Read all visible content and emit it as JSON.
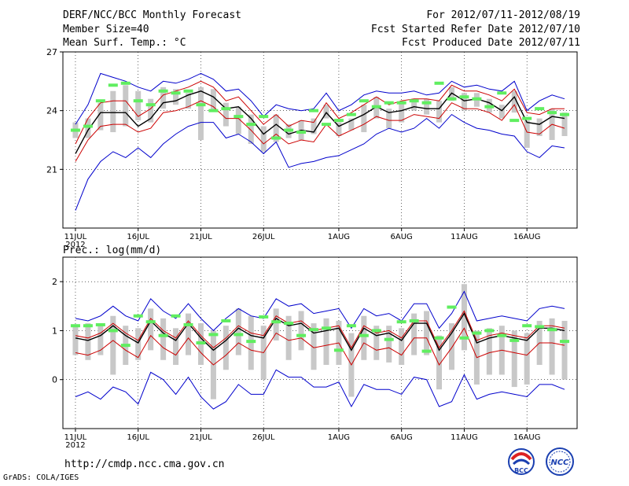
{
  "header": {
    "title": "DERF/NCC/BCC Monthly Forecast",
    "member_size": "Member Size=40",
    "variable": "Mean Surf. Temp.: °C",
    "period": "For 2012/07/11-2012/08/19",
    "start_date": "Fcst Started Refer Date 2012/07/10",
    "produced_date": "Fcst Produced Date 2012/07/11"
  },
  "footer": {
    "url": "http://cmdp.ncc.cma.gov.cn",
    "credit": "GrADS: COLA/IGES",
    "logo_bcc_text": "BCC",
    "logo_ncc_text": "NCC"
  },
  "colors": {
    "box": "#c8c8c8",
    "median": "#60ee60",
    "mean": "#000000",
    "extreme": "#0000cc",
    "std_band": "#cc0000",
    "outer_ring": "#1a3fb0"
  },
  "chart_data": [
    {
      "type": "box-line",
      "title": "Mean Surf. Temp.: °C",
      "ylabel": "°C",
      "ylim": [
        18,
        27
      ],
      "yticks": [
        21,
        24,
        27
      ],
      "x_labels": [
        {
          "day": 0,
          "label": "11JUL",
          "sublabel": "2012"
        },
        {
          "day": 5,
          "label": "16JUL"
        },
        {
          "day": 10,
          "label": "21JUL"
        },
        {
          "day": 15,
          "label": "26JUL"
        },
        {
          "day": 21,
          "label": "1AUG"
        },
        {
          "day": 26,
          "label": "6AUG"
        },
        {
          "day": 31,
          "label": "11AUG"
        },
        {
          "day": 36,
          "label": "16AUG"
        }
      ],
      "days": 40,
      "mean": [
        21.8,
        23.0,
        23.9,
        23.9,
        23.9,
        23.2,
        23.6,
        24.4,
        24.5,
        24.8,
        25.0,
        24.7,
        24.1,
        24.2,
        23.6,
        22.8,
        23.3,
        22.8,
        23.0,
        22.9,
        23.9,
        23.2,
        23.5,
        23.8,
        24.2,
        23.9,
        24.0,
        24.2,
        24.1,
        24.1,
        24.9,
        24.5,
        24.6,
        24.4,
        24.0,
        24.7,
        23.4,
        23.3,
        23.7,
        23.6,
        23.4,
        23.9
      ],
      "mean_plus_sd": [
        22.3,
        23.6,
        24.4,
        24.5,
        24.5,
        23.7,
        24.1,
        24.8,
        25.0,
        25.2,
        25.5,
        25.2,
        24.5,
        24.7,
        24.0,
        23.3,
        23.8,
        23.2,
        23.5,
        23.4,
        24.4,
        23.6,
        23.9,
        24.3,
        24.7,
        24.3,
        24.5,
        24.6,
        24.6,
        24.5,
        25.3,
        25.0,
        25.0,
        24.8,
        24.5,
        25.1,
        23.9,
        23.8,
        24.1,
        24.1,
        23.9,
        24.3
      ],
      "mean_minus_sd": [
        21.4,
        22.5,
        23.2,
        23.3,
        23.3,
        22.9,
        23.1,
        23.9,
        24.0,
        24.2,
        24.5,
        24.2,
        23.6,
        23.6,
        23.0,
        22.3,
        22.8,
        22.3,
        22.5,
        22.4,
        23.3,
        22.7,
        23.0,
        23.3,
        23.7,
        23.5,
        23.5,
        23.8,
        23.7,
        23.6,
        24.4,
        24.1,
        24.1,
        23.9,
        23.5,
        24.3,
        22.9,
        22.8,
        23.3,
        23.1,
        22.9,
        23.5
      ],
      "max": [
        23.3,
        24.3,
        25.9,
        25.7,
        25.5,
        25.2,
        25.0,
        25.5,
        25.4,
        25.6,
        25.9,
        25.6,
        25.0,
        25.1,
        24.5,
        23.7,
        24.3,
        24.1,
        24.0,
        24.1,
        24.9,
        24.0,
        24.3,
        24.8,
        25.0,
        24.9,
        24.9,
        25.0,
        24.8,
        24.9,
        25.5,
        25.2,
        25.3,
        25.1,
        25.0,
        25.5,
        24.0,
        24.5,
        24.8,
        24.6,
        24.5,
        24.7
      ],
      "min": [
        18.9,
        20.5,
        21.4,
        21.9,
        21.6,
        22.1,
        21.6,
        22.3,
        22.8,
        23.2,
        23.4,
        23.4,
        22.6,
        22.8,
        22.4,
        21.8,
        22.4,
        21.1,
        21.3,
        21.4,
        21.6,
        21.7,
        22.0,
        22.3,
        22.8,
        23.1,
        22.9,
        23.1,
        23.6,
        23.1,
        23.8,
        23.4,
        23.1,
        23.0,
        22.8,
        22.7,
        21.9,
        21.6,
        22.2,
        22.1,
        21.9,
        22.4
      ],
      "box_upper": [
        23.4,
        23.6,
        24.4,
        25.0,
        25.3,
        25.0,
        24.6,
        25.2,
        25.1,
        24.9,
        25.2,
        25.1,
        24.4,
        24.2,
        23.8,
        23.2,
        23.8,
        23.3,
        23.5,
        23.6,
        24.3,
        23.4,
        23.6,
        24.3,
        24.7,
        24.1,
        24.4,
        24.6,
        24.6,
        24.5,
        25.2,
        24.9,
        24.9,
        24.6,
        24.3,
        25.0,
        23.5,
        23.6,
        24.1,
        23.9,
        23.8,
        24.3
      ],
      "box_lower": [
        22.6,
        22.6,
        23.0,
        22.9,
        23.2,
        23.5,
        23.4,
        24.1,
        24.3,
        24.1,
        22.5,
        24.0,
        23.2,
        22.8,
        22.3,
        21.9,
        22.4,
        22.6,
        22.5,
        22.8,
        23.6,
        22.7,
        23.0,
        22.9,
        23.6,
        23.1,
        23.4,
        24.0,
        23.8,
        23.4,
        24.5,
        24.0,
        24.2,
        23.9,
        23.6,
        23.9,
        22.1,
        22.7,
        22.5,
        22.7,
        22.7,
        23.0
      ],
      "median": [
        23.0,
        23.2,
        24.5,
        25.3,
        25.4,
        24.5,
        24.3,
        25.0,
        24.9,
        25.0,
        24.3,
        24.0,
        24.1,
        23.7,
        23.3,
        23.7,
        22.6,
        23.0,
        22.9,
        24.0,
        23.3,
        23.5,
        23.8,
        24.5,
        24.2,
        24.4,
        24.4,
        24.5,
        24.4,
        25.4,
        24.6,
        24.7,
        24.6,
        24.2,
        24.9,
        23.5,
        23.6,
        24.1,
        23.9,
        23.8,
        24.3,
        24.3
      ]
    },
    {
      "type": "box-line",
      "title": "Prec.: log(mm/d)",
      "ylabel": "log(mm/d)",
      "ylim": [
        -1,
        2.5
      ],
      "yticks": [
        0,
        1,
        2
      ],
      "x_labels": [
        {
          "day": 0,
          "label": "11JUL",
          "sublabel": "2012"
        },
        {
          "day": 5,
          "label": "16JUL"
        },
        {
          "day": 10,
          "label": "21JUL"
        },
        {
          "day": 15,
          "label": "26JUL"
        },
        {
          "day": 21,
          "label": "1AUG"
        },
        {
          "day": 26,
          "label": "6AUG"
        },
        {
          "day": 31,
          "label": "11AUG"
        },
        {
          "day": 36,
          "label": "16AUG"
        }
      ],
      "days": 40,
      "mean": [
        0.85,
        0.8,
        0.9,
        1.1,
        0.9,
        0.75,
        1.2,
        0.95,
        0.8,
        1.15,
        0.85,
        0.6,
        0.8,
        1.05,
        0.9,
        0.85,
        1.25,
        1.1,
        1.15,
        0.95,
        1.0,
        1.05,
        0.6,
        1.05,
        0.9,
        0.95,
        0.8,
        1.15,
        1.15,
        0.6,
        0.95,
        1.35,
        0.75,
        0.85,
        0.9,
        0.85,
        0.8,
        1.05,
        1.05,
        1.0,
        0.95,
        0.8
      ],
      "mean_plus_sd": [
        0.9,
        0.85,
        0.95,
        1.15,
        0.95,
        0.8,
        1.25,
        1.0,
        0.85,
        1.2,
        0.9,
        0.65,
        0.85,
        1.1,
        0.95,
        0.9,
        1.3,
        1.15,
        1.2,
        1.0,
        1.05,
        1.1,
        0.65,
        1.1,
        0.95,
        1.0,
        0.85,
        1.2,
        1.2,
        0.65,
        1.0,
        1.4,
        0.8,
        0.9,
        0.95,
        0.9,
        0.85,
        1.1,
        1.1,
        1.05,
        1.0,
        0.85
      ],
      "mean_minus_sd": [
        0.55,
        0.5,
        0.6,
        0.8,
        0.6,
        0.45,
        0.9,
        0.65,
        0.5,
        0.85,
        0.55,
        0.3,
        0.5,
        0.75,
        0.6,
        0.55,
        0.95,
        0.8,
        0.85,
        0.65,
        0.7,
        0.75,
        0.3,
        0.75,
        0.6,
        0.65,
        0.5,
        0.85,
        0.85,
        0.3,
        0.65,
        1.05,
        0.45,
        0.55,
        0.6,
        0.55,
        0.5,
        0.75,
        0.75,
        0.7,
        0.65,
        0.5
      ],
      "max": [
        1.25,
        1.2,
        1.3,
        1.5,
        1.3,
        1.2,
        1.65,
        1.4,
        1.25,
        1.55,
        1.25,
        1.0,
        1.25,
        1.45,
        1.3,
        1.25,
        1.65,
        1.5,
        1.55,
        1.35,
        1.4,
        1.45,
        1.05,
        1.45,
        1.3,
        1.35,
        1.2,
        1.55,
        1.55,
        1.05,
        1.35,
        1.8,
        1.2,
        1.25,
        1.3,
        1.25,
        1.2,
        1.45,
        1.5,
        1.45,
        1.35,
        1.2
      ],
      "min": [
        -0.35,
        -0.25,
        -0.4,
        -0.15,
        -0.25,
        -0.5,
        0.15,
        0.0,
        -0.3,
        0.05,
        -0.35,
        -0.6,
        -0.45,
        -0.1,
        -0.3,
        -0.3,
        0.2,
        0.05,
        0.05,
        -0.15,
        -0.15,
        -0.05,
        -0.55,
        -0.1,
        -0.2,
        -0.2,
        -0.3,
        0.05,
        0.0,
        -0.55,
        -0.45,
        0.1,
        -0.4,
        -0.3,
        -0.25,
        -0.3,
        -0.35,
        -0.1,
        -0.1,
        -0.2,
        -0.25,
        -0.45
      ],
      "box_upper": [
        1.1,
        1.15,
        1.15,
        1.3,
        1.1,
        1.05,
        1.45,
        1.25,
        1.05,
        1.35,
        1.15,
        1.0,
        1.1,
        1.45,
        1.3,
        1.1,
        1.45,
        1.3,
        1.4,
        1.15,
        1.25,
        1.2,
        0.95,
        1.3,
        1.1,
        1.1,
        1.05,
        1.35,
        1.4,
        0.9,
        1.15,
        1.95,
        1.0,
        1.05,
        1.1,
        1.0,
        0.95,
        1.2,
        1.25,
        1.2,
        1.1,
        1.05
      ],
      "box_lower": [
        0.5,
        0.4,
        0.5,
        0.1,
        0.3,
        0.4,
        0.6,
        0.4,
        0.3,
        0.5,
        0.3,
        -0.4,
        0.2,
        0.5,
        0.2,
        0.0,
        0.8,
        0.4,
        0.6,
        0.2,
        0.3,
        0.3,
        -0.35,
        0.4,
        0.4,
        0.35,
        0.3,
        0.5,
        0.5,
        -0.2,
        0.2,
        0.6,
        -0.1,
        0.1,
        0.1,
        -0.15,
        -0.1,
        0.3,
        0.1,
        0.0,
        0.1,
        0.1
      ],
      "median": [
        1.1,
        1.1,
        1.12,
        1.0,
        0.7,
        1.3,
        1.18,
        0.9,
        1.3,
        1.12,
        0.75,
        0.92,
        1.2,
        0.92,
        0.78,
        1.28,
        1.18,
        1.15,
        0.9,
        1.02,
        1.05,
        0.6,
        1.1,
        0.9,
        1.0,
        0.82,
        1.18,
        1.2,
        0.58,
        0.85,
        1.48,
        0.85,
        0.95,
        1.0,
        0.9,
        0.8,
        1.1,
        1.08,
        1.02,
        0.78,
        0.78,
        0.78
      ]
    }
  ]
}
